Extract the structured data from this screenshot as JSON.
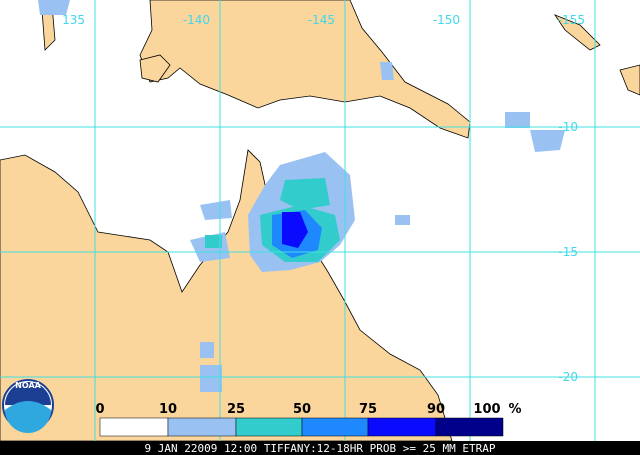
{
  "map": {
    "longitude_labels": [
      "135",
      "-140",
      "-145",
      "-150",
      "-155"
    ],
    "latitude_labels": [
      "-10",
      "-15",
      "-20"
    ],
    "logo": "NOAA",
    "legend": {
      "ticks": [
        "0",
        "10",
        "25",
        "50",
        "75",
        "90",
        "100"
      ],
      "unit": "%",
      "colors": [
        "#ffffff",
        "#99c2f2",
        "#33cccc",
        "#1e88ff",
        "#0a0aff",
        "#00008b"
      ]
    },
    "caption": "9 JAN 22009 12:00 TIFFANY:12-18HR PROB >= 25 MM ETRAP"
  }
}
